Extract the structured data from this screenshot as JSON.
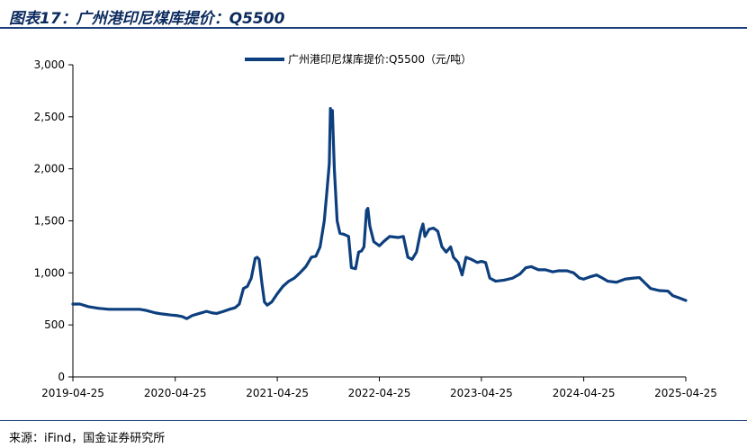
{
  "header": {
    "title": "图表17：广州港印尼煤库提价：Q5500"
  },
  "footer": {
    "source": "来源：iFind，国金证券研究所"
  },
  "chart_data": {
    "type": "line",
    "title": "",
    "xlabel": "",
    "ylabel": "",
    "ylim": [
      0,
      3000
    ],
    "yticks": [
      0,
      500,
      1000,
      1500,
      2000,
      2500,
      3000
    ],
    "ytick_labels": [
      "0",
      "500",
      "1,000",
      "1,500",
      "2,000",
      "2,500",
      "3,000"
    ],
    "xticks": [
      "2019-04-25",
      "2020-04-25",
      "2021-04-25",
      "2022-04-25",
      "2023-04-25",
      "2024-04-25",
      "2025-04-25"
    ],
    "xlim": [
      "2019-04-25",
      "2025-04-25"
    ],
    "legend_position": "top-center",
    "grid": false,
    "color": "#0d3f7e",
    "series": [
      {
        "name": "广州港印尼煤库提价:Q5500（元/吨）",
        "points": [
          [
            "2019-04-25",
            700
          ],
          [
            "2019-05-20",
            700
          ],
          [
            "2019-06-20",
            675
          ],
          [
            "2019-07-25",
            660
          ],
          [
            "2019-09-01",
            650
          ],
          [
            "2019-11-01",
            650
          ],
          [
            "2019-12-20",
            650
          ],
          [
            "2020-01-10",
            640
          ],
          [
            "2020-02-15",
            615
          ],
          [
            "2020-03-10",
            605
          ],
          [
            "2020-04-10",
            595
          ],
          [
            "2020-05-01",
            590
          ],
          [
            "2020-05-20",
            580
          ],
          [
            "2020-06-05",
            560
          ],
          [
            "2020-06-25",
            590
          ],
          [
            "2020-07-20",
            610
          ],
          [
            "2020-08-15",
            630
          ],
          [
            "2020-09-05",
            615
          ],
          [
            "2020-09-20",
            610
          ],
          [
            "2020-10-15",
            630
          ],
          [
            "2020-11-05",
            650
          ],
          [
            "2020-11-25",
            665
          ],
          [
            "2020-12-10",
            700
          ],
          [
            "2020-12-25",
            850
          ],
          [
            "2021-01-08",
            870
          ],
          [
            "2021-01-22",
            950
          ],
          [
            "2021-02-05",
            1140
          ],
          [
            "2021-02-12",
            1150
          ],
          [
            "2021-02-19",
            1130
          ],
          [
            "2021-03-01",
            900
          ],
          [
            "2021-03-10",
            720
          ],
          [
            "2021-03-20",
            690
          ],
          [
            "2021-04-05",
            720
          ],
          [
            "2021-04-25",
            800
          ],
          [
            "2021-05-15",
            870
          ],
          [
            "2021-06-05",
            920
          ],
          [
            "2021-06-25",
            950
          ],
          [
            "2021-07-15",
            1000
          ],
          [
            "2021-08-05",
            1060
          ],
          [
            "2021-08-25",
            1150
          ],
          [
            "2021-09-10",
            1160
          ],
          [
            "2021-09-25",
            1250
          ],
          [
            "2021-10-10",
            1500
          ],
          [
            "2021-10-20",
            1800
          ],
          [
            "2021-10-28",
            2050
          ],
          [
            "2021-11-01",
            2580
          ],
          [
            "2021-11-04",
            2400
          ],
          [
            "2021-11-08",
            2560
          ],
          [
            "2021-11-15",
            2000
          ],
          [
            "2021-11-25",
            1500
          ],
          [
            "2021-12-05",
            1380
          ],
          [
            "2021-12-20",
            1370
          ],
          [
            "2022-01-05",
            1350
          ],
          [
            "2022-01-15",
            1050
          ],
          [
            "2022-01-30",
            1040
          ],
          [
            "2022-02-10",
            1200
          ],
          [
            "2022-02-20",
            1210
          ],
          [
            "2022-03-01",
            1250
          ],
          [
            "2022-03-10",
            1600
          ],
          [
            "2022-03-15",
            1620
          ],
          [
            "2022-03-22",
            1450
          ],
          [
            "2022-04-05",
            1300
          ],
          [
            "2022-04-25",
            1260
          ],
          [
            "2022-05-10",
            1300
          ],
          [
            "2022-06-01",
            1350
          ],
          [
            "2022-07-01",
            1340
          ],
          [
            "2022-07-20",
            1350
          ],
          [
            "2022-08-05",
            1150
          ],
          [
            "2022-08-20",
            1130
          ],
          [
            "2022-09-05",
            1200
          ],
          [
            "2022-09-20",
            1400
          ],
          [
            "2022-09-28",
            1470
          ],
          [
            "2022-10-05",
            1350
          ],
          [
            "2022-10-20",
            1420
          ],
          [
            "2022-11-05",
            1430
          ],
          [
            "2022-11-20",
            1400
          ],
          [
            "2022-12-05",
            1250
          ],
          [
            "2022-12-20",
            1200
          ],
          [
            "2023-01-05",
            1250
          ],
          [
            "2023-01-15",
            1150
          ],
          [
            "2023-02-01",
            1100
          ],
          [
            "2023-02-15",
            980
          ],
          [
            "2023-03-01",
            1150
          ],
          [
            "2023-03-20",
            1130
          ],
          [
            "2023-04-10",
            1100
          ],
          [
            "2023-04-25",
            1110
          ],
          [
            "2023-05-10",
            1100
          ],
          [
            "2023-05-25",
            950
          ],
          [
            "2023-06-15",
            920
          ],
          [
            "2023-07-15",
            930
          ],
          [
            "2023-08-15",
            950
          ],
          [
            "2023-09-10",
            990
          ],
          [
            "2023-10-01",
            1050
          ],
          [
            "2023-10-20",
            1060
          ],
          [
            "2023-11-15",
            1030
          ],
          [
            "2023-12-10",
            1030
          ],
          [
            "2024-01-05",
            1010
          ],
          [
            "2024-01-25",
            1020
          ],
          [
            "2024-02-25",
            1020
          ],
          [
            "2024-03-20",
            1000
          ],
          [
            "2024-04-10",
            950
          ],
          [
            "2024-04-25",
            940
          ],
          [
            "2024-05-15",
            960
          ],
          [
            "2024-06-10",
            980
          ],
          [
            "2024-07-01",
            950
          ],
          [
            "2024-07-20",
            920
          ],
          [
            "2024-08-20",
            910
          ],
          [
            "2024-09-20",
            940
          ],
          [
            "2024-10-20",
            950
          ],
          [
            "2024-11-10",
            955
          ],
          [
            "2024-12-01",
            900
          ],
          [
            "2024-12-20",
            850
          ],
          [
            "2025-01-20",
            830
          ],
          [
            "2025-02-20",
            825
          ],
          [
            "2025-03-10",
            780
          ],
          [
            "2025-04-01",
            760
          ],
          [
            "2025-04-25",
            735
          ]
        ]
      }
    ]
  }
}
